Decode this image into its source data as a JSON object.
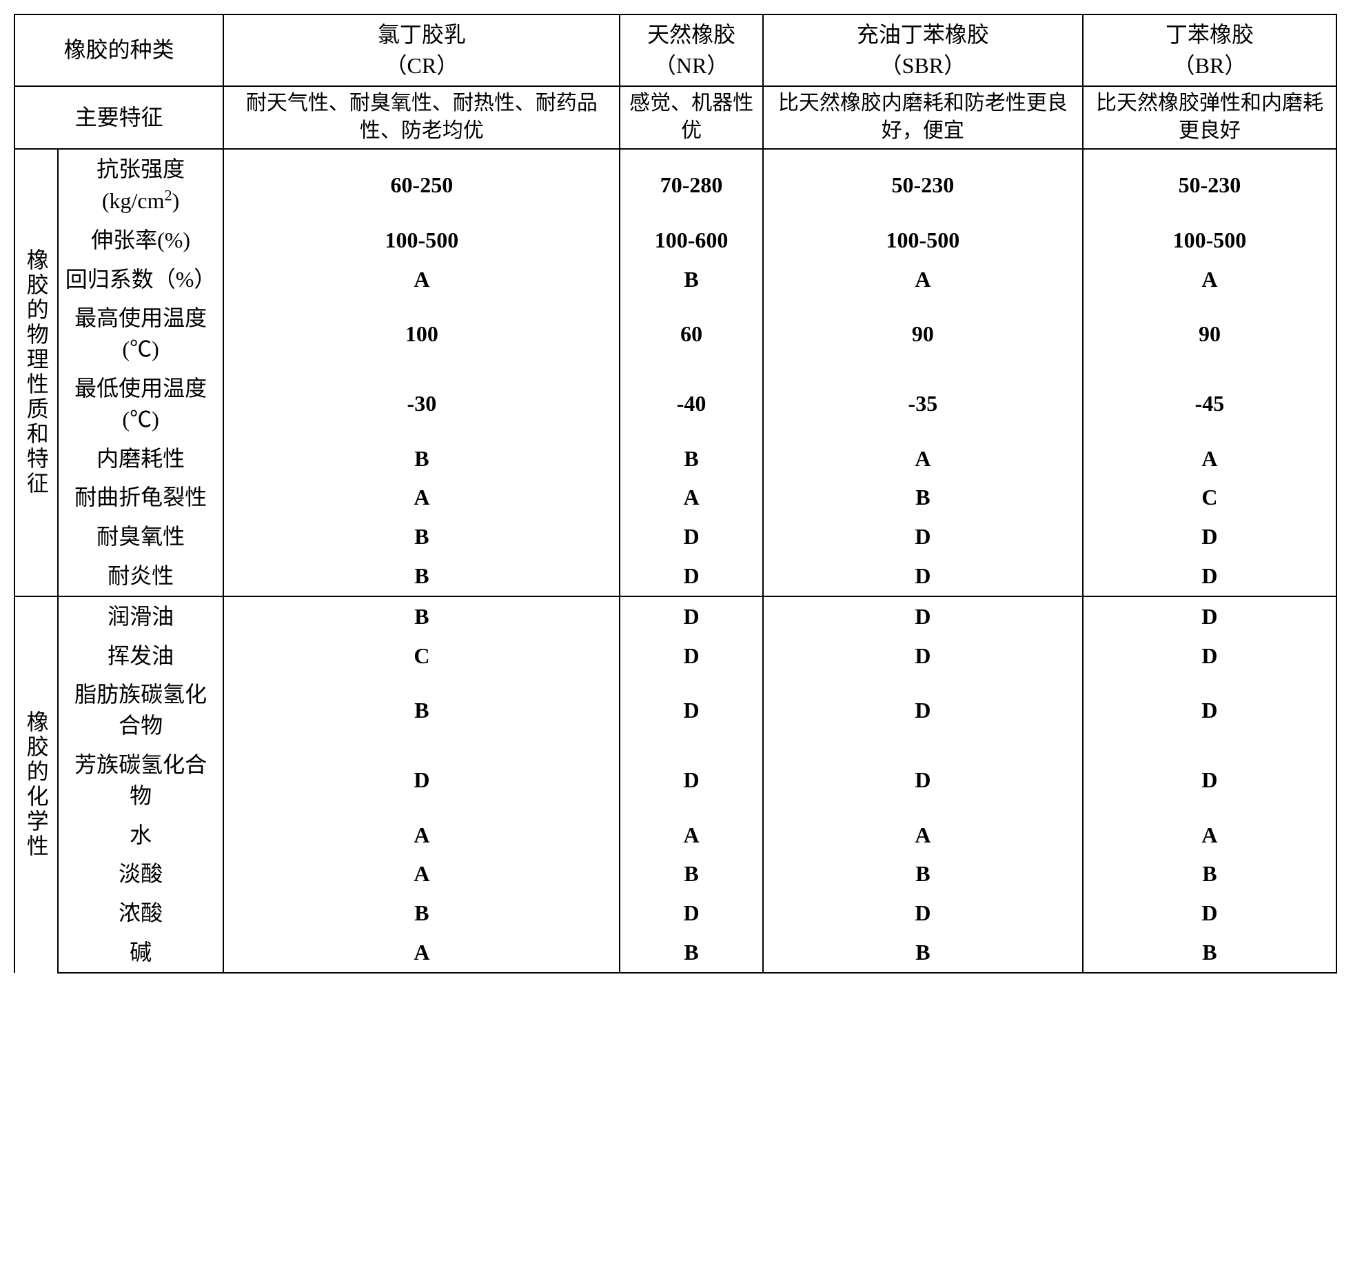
{
  "header": {
    "type_label": "橡胶的种类",
    "cols": [
      {
        "line1": "氯丁胶乳",
        "line2": "（CR）"
      },
      {
        "line1": "天然橡胶",
        "line2": "（NR）"
      },
      {
        "line1": "充油丁苯橡胶",
        "line2": "（SBR）"
      },
      {
        "line1": "丁苯橡胶",
        "line2": "（BR）"
      }
    ],
    "feature_label": "主要特征",
    "features": [
      "耐天气性、耐臭氧性、耐热性、耐药品性、防老均优",
      "感觉、机器性优",
      "比天然橡胶内磨耗和防老性更良好，便宜",
      "比天然橡胶弹性和内磨耗更良好"
    ]
  },
  "sections": [
    {
      "vlabel": "橡胶的物理性质和特征",
      "rows": [
        {
          "label": "抗张强度(kg/cm²)",
          "label_html": "抗张强度(kg/cm<span class='sup'>2</span>)",
          "vals": [
            "60-250",
            "70-280",
            "50-230",
            "50-230"
          ]
        },
        {
          "label": "伸张率(%)",
          "vals": [
            "100-500",
            "100-600",
            "100-500",
            "100-500"
          ]
        },
        {
          "label": "回归系数（%）",
          "vals": [
            "A",
            "B",
            "A",
            "A"
          ]
        },
        {
          "label": "最高使用温度(℃)",
          "vals": [
            "100",
            "60",
            "90",
            "90"
          ]
        },
        {
          "label": "最低使用温度(℃)",
          "vals": [
            "-30",
            "-40",
            "-35",
            "-45"
          ]
        },
        {
          "label": "内磨耗性",
          "vals": [
            "B",
            "B",
            "A",
            "A"
          ]
        },
        {
          "label": "耐曲折龟裂性",
          "vals": [
            "A",
            "A",
            "B",
            "C"
          ]
        },
        {
          "label": "耐臭氧性",
          "vals": [
            "B",
            "D",
            "D",
            "D"
          ]
        },
        {
          "label": "耐炎性",
          "vals": [
            "B",
            "D",
            "D",
            "D"
          ]
        }
      ]
    },
    {
      "vlabel": "橡胶的化学性",
      "rows": [
        {
          "label": "润滑油",
          "vals": [
            "B",
            "D",
            "D",
            "D"
          ]
        },
        {
          "label": "挥发油",
          "vals": [
            "C",
            "D",
            "D",
            "D"
          ]
        },
        {
          "label": "脂肪族碳氢化合物",
          "vals": [
            "B",
            "D",
            "D",
            "D"
          ]
        },
        {
          "label": "芳族碳氢化合物",
          "vals": [
            "D",
            "D",
            "D",
            "D"
          ]
        },
        {
          "label": "水",
          "vals": [
            "A",
            "A",
            "A",
            "A"
          ]
        },
        {
          "label": "淡酸",
          "vals": [
            "A",
            "B",
            "B",
            "B"
          ]
        },
        {
          "label": "浓酸",
          "vals": [
            "B",
            "D",
            "D",
            "D"
          ]
        },
        {
          "label": "碱",
          "vals": [
            "A",
            "B",
            "B",
            "B"
          ]
        }
      ]
    }
  ],
  "style": {
    "border_color": "#000000",
    "background_color": "#ffffff",
    "font_family": "SimSun",
    "header_fontsize": 32,
    "cell_fontsize": 32,
    "feature_fontsize": 30,
    "bold_data": true
  }
}
